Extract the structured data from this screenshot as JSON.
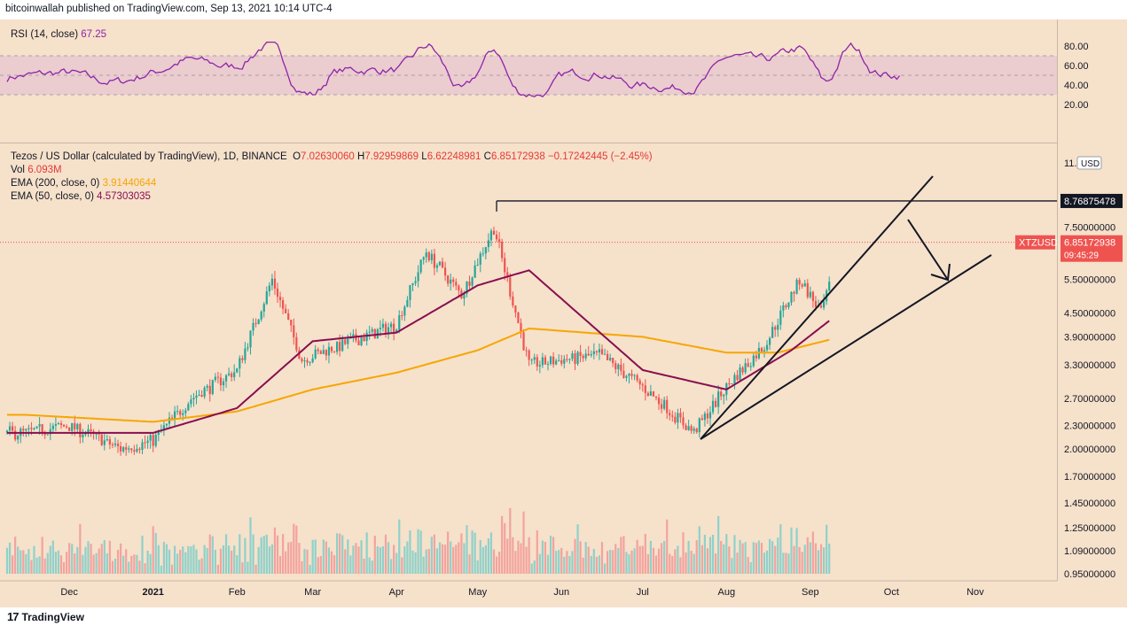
{
  "header": {
    "publisher": "bitcoinwallah published on TradingView.com, Sep 13, 2021 10:14 UTC-4"
  },
  "rsi": {
    "label": "RSI (14, close)",
    "value": "67.25",
    "ticks": [
      "80.00",
      "60.00",
      "40.00",
      "20.00"
    ]
  },
  "main": {
    "title": "Tezos / US Dollar (calculated by TradingView), 1D, BINANCE",
    "o_label": "O",
    "o": "7.02630060",
    "h_label": "H",
    "h": "7.92959869",
    "l_label": "L",
    "l": "6.62248981",
    "c_label": "C",
    "c": "6.85172938",
    "change": "−0.17242445 (−2.45%)",
    "vol_label": "Vol",
    "vol": "6.093M",
    "ema200_label": "EMA (200, close, 0)",
    "ema200": "3.91440644",
    "ema50_label": "EMA (50, close, 0)",
    "ema50": "4.57303035"
  },
  "price_axis": {
    "currency": "USD",
    "top_tick": "11.0",
    "ticks": [
      "7.50000000",
      "5.50000000",
      "4.50000000",
      "3.90000000",
      "3.30000000",
      "2.70000000",
      "2.30000000",
      "2.00000000",
      "1.70000000",
      "1.45000000",
      "1.25000000",
      "1.09000000",
      "0.95000000"
    ],
    "resistance": "8.76875478",
    "symbol": "XTZUSD",
    "last": "6.85172938",
    "countdown": "09:45:29"
  },
  "time_axis": [
    "Dec",
    "2021",
    "Feb",
    "Mar",
    "Apr",
    "May",
    "Jun",
    "Jul",
    "Aug",
    "Sep",
    "Oct",
    "Nov"
  ],
  "footer": {
    "brand": "TradingView",
    "logo": "17"
  },
  "colors": {
    "background": "#f6e1cb",
    "rsi": "#8e24aa",
    "ema200": "#f7a600",
    "ema50": "#880e4f",
    "up": "#26a69a",
    "down": "#ef5350"
  },
  "chart_data": {
    "type": "candlestick",
    "symbol": "XTZUSD",
    "interval": "1D",
    "exchange": "BINANCE",
    "scale": "log",
    "ylim": [
      0.95,
      11.0
    ],
    "series": [
      {
        "name": "XTZUSD close (approx.)",
        "x": [
          "2020-11-15",
          "2020-12-01",
          "2020-12-20",
          "2021-01-01",
          "2021-01-15",
          "2021-02-01",
          "2021-02-14",
          "2021-02-25",
          "2021-03-15",
          "2021-04-01",
          "2021-04-12",
          "2021-04-25",
          "2021-05-07",
          "2021-05-20",
          "2021-06-01",
          "2021-06-15",
          "2021-07-01",
          "2021-07-20",
          "2021-08-01",
          "2021-08-15",
          "2021-08-28",
          "2021-09-05",
          "2021-09-13"
        ],
        "values": [
          2.2,
          2.3,
          2.0,
          2.1,
          2.7,
          3.2,
          5.5,
          3.4,
          3.8,
          4.2,
          6.5,
          5.0,
          7.5,
          3.3,
          3.4,
          3.5,
          2.9,
          2.2,
          2.9,
          3.7,
          5.5,
          4.5,
          6.85
        ]
      },
      {
        "name": "EMA (200, close, 0)",
        "x": [
          "2020-11-15",
          "2021-01-01",
          "2021-02-01",
          "2021-03-01",
          "2021-04-01",
          "2021-05-01",
          "2021-05-20",
          "2021-07-01",
          "2021-08-01",
          "2021-08-20",
          "2021-09-13"
        ],
        "values": [
          2.45,
          2.35,
          2.5,
          2.85,
          3.15,
          3.6,
          4.1,
          3.9,
          3.55,
          3.55,
          3.91
        ]
      },
      {
        "name": "EMA (50, close, 0)",
        "x": [
          "2020-11-15",
          "2021-01-01",
          "2021-02-01",
          "2021-03-01",
          "2021-04-01",
          "2021-05-01",
          "2021-05-20",
          "2021-07-01",
          "2021-08-01",
          "2021-08-25",
          "2021-09-13"
        ],
        "values": [
          2.2,
          2.2,
          2.55,
          3.8,
          4.0,
          5.3,
          5.8,
          3.2,
          2.85,
          3.6,
          4.57
        ]
      }
    ],
    "rsi": {
      "name": "RSI (14, close)",
      "last": 67.25,
      "band": [
        30,
        70
      ]
    },
    "annotations": {
      "resistance": 8.76875478,
      "last_price": 6.85172938,
      "pattern": "rising wedge"
    },
    "volume_last": "6.093M"
  }
}
